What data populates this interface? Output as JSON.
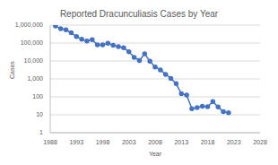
{
  "chart_data": {
    "type": "line",
    "title": "Reported Dracunculiasis Cases by Year",
    "x_label": "Year",
    "y_label": "Cases",
    "x": [
      1989,
      1990,
      1991,
      1992,
      1993,
      1994,
      1995,
      1996,
      1997,
      1998,
      1999,
      2000,
      2001,
      2002,
      2003,
      2004,
      2005,
      2006,
      2007,
      2008,
      2009,
      2010,
      2011,
      2012,
      2013,
      2014,
      2015,
      2016,
      2017,
      2018,
      2019,
      2020,
      2021,
      2022
    ],
    "values": [
      892055,
      623579,
      543585,
      374202,
      229773,
      164973,
      129852,
      152814,
      78557,
      78370,
      96293,
      75223,
      63717,
      54638,
      32193,
      16026,
      10674,
      25217,
      9585,
      4619,
      3190,
      1797,
      1058,
      542,
      148,
      126,
      22,
      25,
      30,
      28,
      54,
      27,
      15,
      13
    ],
    "color": "#4472c4",
    "marker": "circle",
    "line_style": "solid",
    "log": "y",
    "grid": true,
    "xlim": [
      1988,
      2028
    ],
    "xticks": [
      1988,
      1993,
      1998,
      2003,
      2008,
      2013,
      2018,
      2023,
      2028
    ],
    "ylim": [
      1,
      1000000
    ],
    "yticks": [
      1,
      10,
      100,
      {
        "value": 1000,
        "label": "1,000"
      },
      {
        "value": 10000,
        "label": "10,000"
      },
      {
        "value": 100000,
        "label": "100,000"
      },
      {
        "value": 1000000,
        "label": "1,000,000"
      }
    ]
  }
}
